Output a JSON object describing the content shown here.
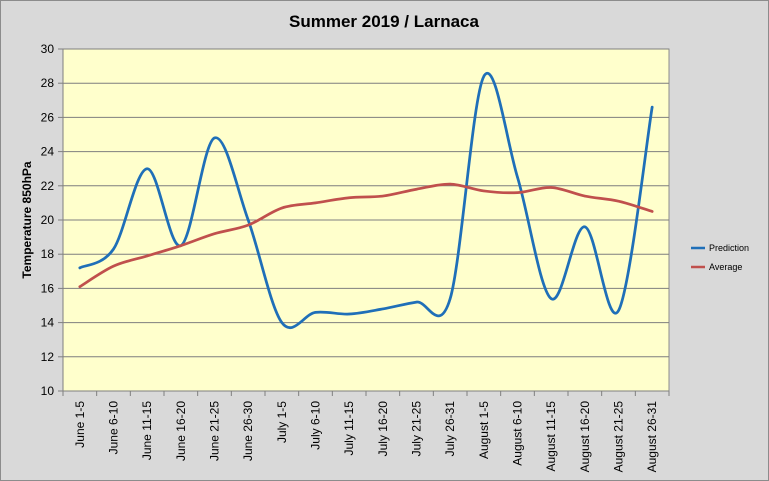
{
  "chart_data": {
    "type": "line",
    "title": "Summer 2019 / Larnaca",
    "xlabel": "",
    "ylabel": "Temperature 850hPa",
    "ylim": [
      10,
      30
    ],
    "yticks": [
      10,
      12,
      14,
      16,
      18,
      20,
      22,
      24,
      26,
      28,
      30
    ],
    "categories": [
      "June 1-5",
      "June 6-10",
      "June 11-15",
      "June 16-20",
      "June 21-25",
      "June 26-30",
      "July 1-5",
      "July 6-10",
      "July 11-15",
      "July 16-20",
      "July 21-25",
      "July 26-31",
      "August 1-5",
      "August 6-10",
      "August 11-15",
      "August 16-20",
      "August 21-25",
      "August 26-31"
    ],
    "series": [
      {
        "name": "Prediction",
        "color": "#1f6fb8",
        "values": [
          17.2,
          18.3,
          23.0,
          18.5,
          24.8,
          20.0,
          14.0,
          14.6,
          14.5,
          14.8,
          15.2,
          15.4,
          28.4,
          22.5,
          15.4,
          19.6,
          14.7,
          26.6
        ]
      },
      {
        "name": "Average",
        "color": "#c0504d",
        "values": [
          16.1,
          17.3,
          17.9,
          18.5,
          19.2,
          19.7,
          20.7,
          21.0,
          21.3,
          21.4,
          21.8,
          22.1,
          21.7,
          21.6,
          21.9,
          21.4,
          21.1,
          20.5
        ]
      }
    ],
    "grid": "horizontal",
    "legend_position": "right",
    "plot_background": "#ffffcc",
    "chart_background": "#d9d9d9"
  }
}
